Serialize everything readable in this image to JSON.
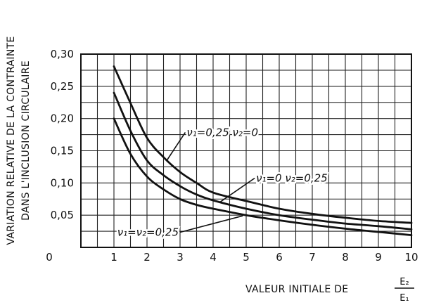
{
  "chart_data": {
    "type": "line",
    "ylabel_lines": [
      "VARIATION RELATIVE DE LA CONTRAINTE",
      "DANS L'INCLUSION CIRCULAIRE"
    ],
    "xlabel": "VALEUR INITIALE DE",
    "xlabel_fraction": {
      "numerator": "E₂",
      "denominator": "E₁"
    },
    "origin_label": "0",
    "xlim": [
      0,
      10
    ],
    "ylim": [
      0,
      0.3
    ],
    "x_ticks": [
      1,
      2,
      3,
      4,
      5,
      6,
      7,
      8,
      9,
      10
    ],
    "x_tick_labels": [
      "1",
      "2",
      "3",
      "4",
      "5",
      "6",
      "7",
      "8",
      "9",
      "10"
    ],
    "y_ticks": [
      0.05,
      0.1,
      0.15,
      0.2,
      0.25,
      0.3
    ],
    "y_tick_labels": [
      "0,05",
      "0,10",
      "0,15",
      "0,20",
      "0,25",
      "0,30"
    ],
    "grid": true,
    "series": [
      {
        "name": "ν₁=0,25 ν₂=0",
        "x": [
          1,
          1.5,
          2,
          2.5,
          3,
          3.5,
          4,
          5,
          6,
          7,
          8,
          9,
          10
        ],
        "y": [
          0.281,
          0.224,
          0.17,
          0.14,
          0.117,
          0.1,
          0.085,
          0.072,
          0.06,
          0.052,
          0.046,
          0.041,
          0.038
        ]
      },
      {
        "name": "ν₁=0 ν₂=0,25",
        "x": [
          1,
          1.5,
          2,
          2.5,
          3,
          3.5,
          4,
          5,
          6,
          7,
          8,
          9,
          10
        ],
        "y": [
          0.24,
          0.181,
          0.135,
          0.112,
          0.095,
          0.082,
          0.073,
          0.06,
          0.05,
          0.043,
          0.037,
          0.033,
          0.028
        ]
      },
      {
        "name": "ν₁=ν₂=0,25",
        "x": [
          1,
          1.5,
          2,
          2.5,
          3,
          3.5,
          4,
          5,
          6,
          7,
          8,
          9,
          10
        ],
        "y": [
          0.2,
          0.145,
          0.11,
          0.09,
          0.075,
          0.066,
          0.06,
          0.05,
          0.042,
          0.035,
          0.029,
          0.024,
          0.019
        ]
      }
    ],
    "annotations": [
      {
        "series": 0,
        "text": "ν₁=0,25 ν₂=0",
        "x": 3.2,
        "y": 0.173,
        "point_x": 2.6,
        "point_y": 0.135
      },
      {
        "series": 1,
        "text": "ν₁=0 ν₂=0,25",
        "x": 5.3,
        "y": 0.102,
        "point_x": 4.2,
        "point_y": 0.07
      },
      {
        "series": 2,
        "text": "ν₁=ν₂=0,25",
        "x": 1.1,
        "y": 0.018,
        "point_x": 4.9,
        "point_y": 0.049
      }
    ]
  }
}
